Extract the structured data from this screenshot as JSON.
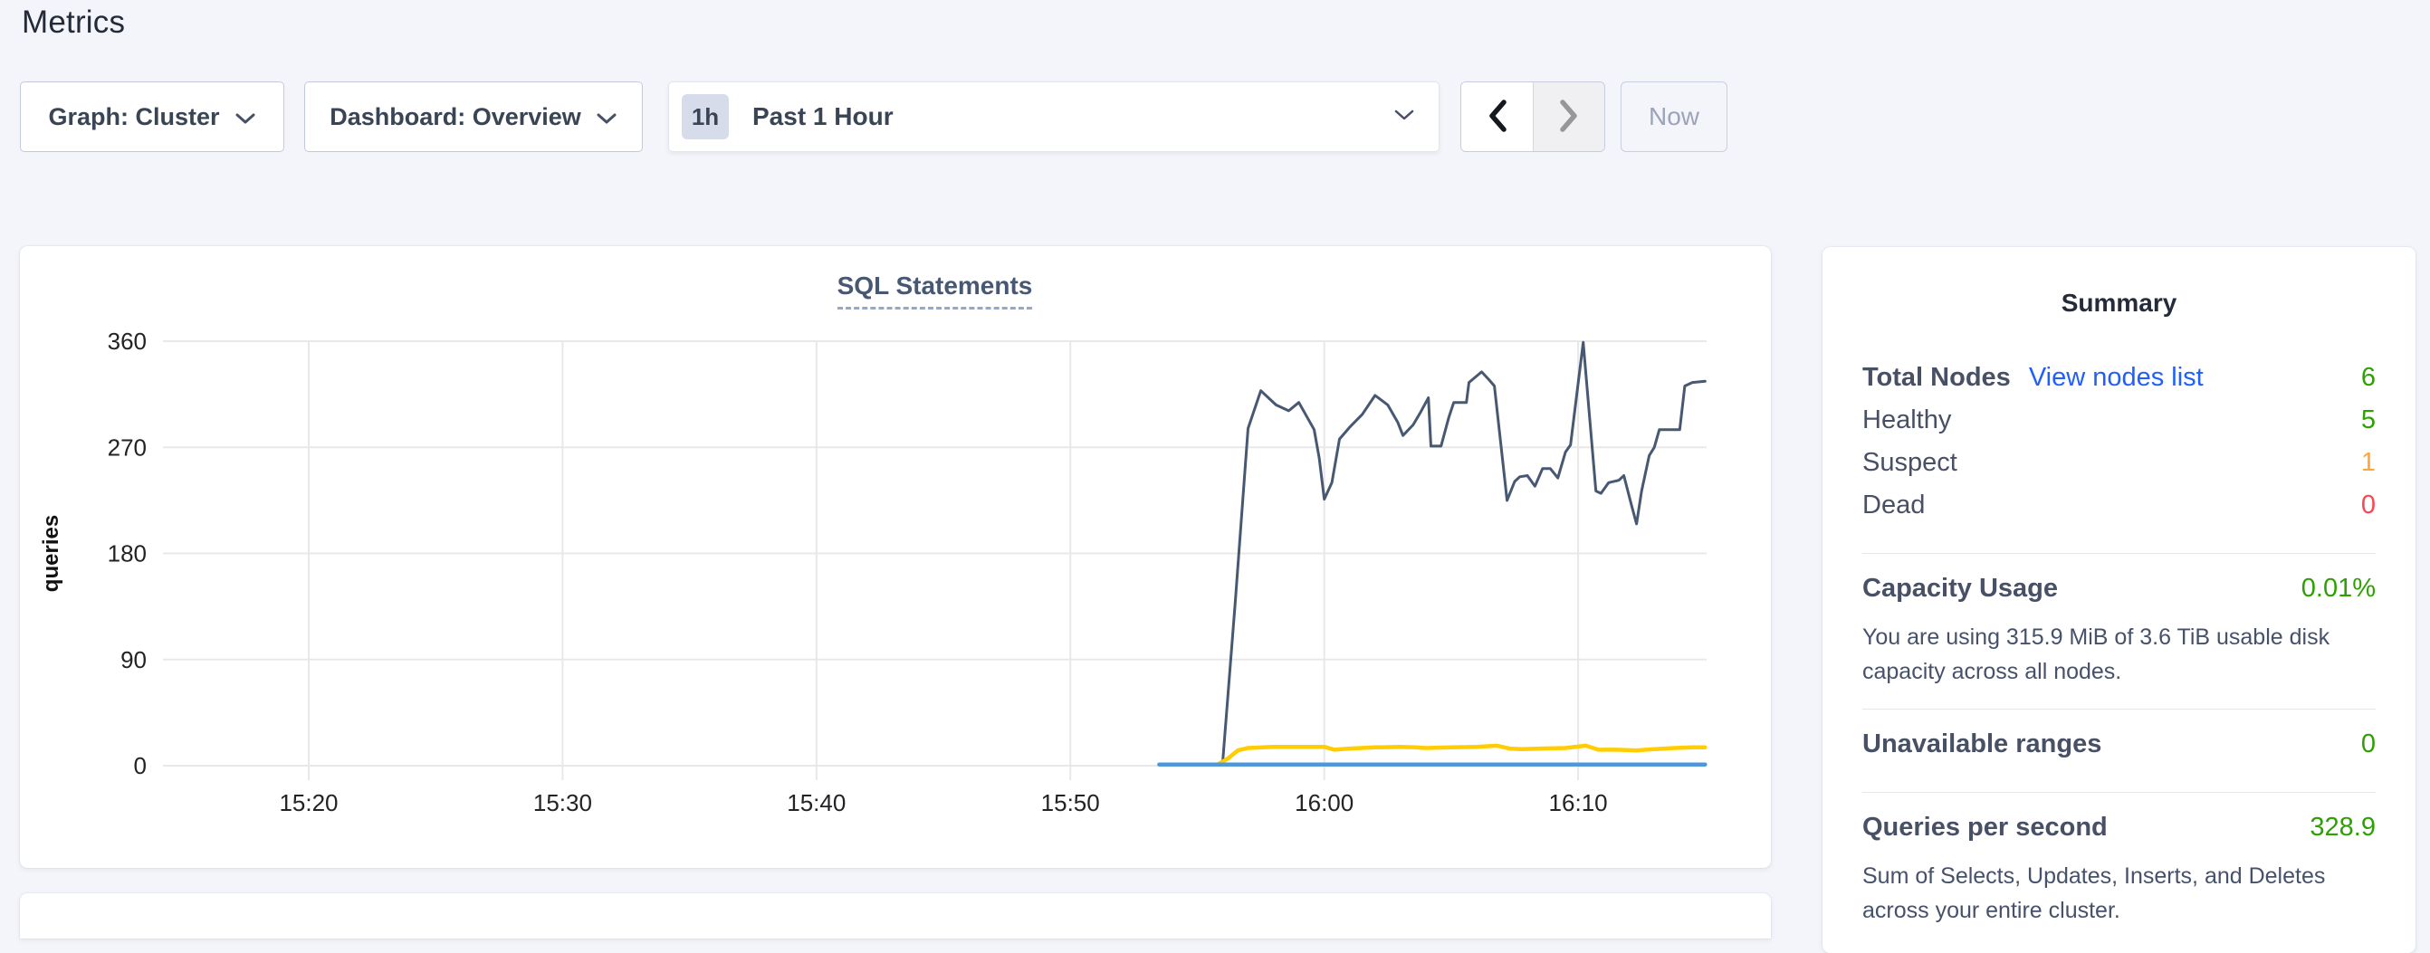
{
  "page": {
    "title": "Metrics"
  },
  "toolbar": {
    "graph_dropdown": "Graph: Cluster",
    "dashboard_dropdown": "Dashboard: Overview",
    "time_badge": "1h",
    "time_label": "Past 1 Hour",
    "now_button": "Now"
  },
  "chart_data": {
    "type": "line",
    "title": "SQL Statements",
    "ylabel": "queries",
    "x_tick_minutes": [
      20,
      30,
      40,
      50,
      60,
      70
    ],
    "x_tick_labels": [
      "15:20",
      "15:30",
      "15:40",
      "15:50",
      "16:00",
      "16:10"
    ],
    "y_ticks": [
      0,
      90,
      180,
      270,
      360
    ],
    "ylim": [
      0,
      360
    ],
    "x_domain_minutes_after_15_00": [
      14.26,
      75.06
    ],
    "grid": true,
    "legend": "none",
    "series": [
      {
        "name": "statements-navy",
        "color": "#475872",
        "width": 3,
        "points": [
          [
            56.0,
            3
          ],
          [
            56.5,
            140
          ],
          [
            57.0,
            286
          ],
          [
            57.5,
            318
          ],
          [
            58.1,
            306
          ],
          [
            58.6,
            301
          ],
          [
            59.0,
            308
          ],
          [
            59.6,
            285
          ],
          [
            59.8,
            261
          ],
          [
            60.0,
            226
          ],
          [
            60.3,
            240
          ],
          [
            60.6,
            277
          ],
          [
            61.0,
            287
          ],
          [
            61.5,
            298
          ],
          [
            62.0,
            314
          ],
          [
            62.5,
            306
          ],
          [
            62.9,
            291
          ],
          [
            63.1,
            280
          ],
          [
            63.5,
            289
          ],
          [
            63.8,
            300
          ],
          [
            64.1,
            312
          ],
          [
            64.2,
            271
          ],
          [
            64.6,
            271
          ],
          [
            64.9,
            295
          ],
          [
            65.1,
            308
          ],
          [
            65.6,
            308
          ],
          [
            65.7,
            325
          ],
          [
            66.2,
            334
          ],
          [
            66.5,
            327
          ],
          [
            66.7,
            322
          ],
          [
            67.2,
            225
          ],
          [
            67.5,
            241
          ],
          [
            67.7,
            245
          ],
          [
            68.0,
            246
          ],
          [
            68.3,
            237
          ],
          [
            68.6,
            252
          ],
          [
            68.9,
            252
          ],
          [
            69.2,
            244
          ],
          [
            69.5,
            266
          ],
          [
            69.7,
            272
          ],
          [
            70.2,
            359
          ],
          [
            70.7,
            233
          ],
          [
            70.9,
            231
          ],
          [
            71.2,
            240
          ],
          [
            71.6,
            242
          ],
          [
            71.8,
            246
          ],
          [
            72.1,
            221
          ],
          [
            72.3,
            205
          ],
          [
            72.5,
            233
          ],
          [
            72.8,
            263
          ],
          [
            73.0,
            270
          ],
          [
            73.2,
            285
          ],
          [
            74.0,
            285
          ],
          [
            74.2,
            322
          ],
          [
            74.5,
            325
          ],
          [
            75.0,
            326
          ]
        ]
      },
      {
        "name": "statements-yellow",
        "color": "#ffcd02",
        "width": 4.5,
        "points": [
          [
            55.8,
            1
          ],
          [
            56.2,
            6
          ],
          [
            56.6,
            13
          ],
          [
            57.0,
            15
          ],
          [
            58.0,
            16
          ],
          [
            59.0,
            16
          ],
          [
            60.0,
            16
          ],
          [
            60.4,
            13.5
          ],
          [
            61.0,
            14.5
          ],
          [
            62.0,
            15.5
          ],
          [
            63.0,
            16
          ],
          [
            63.6,
            15.5
          ],
          [
            64.0,
            15
          ],
          [
            65.0,
            15.5
          ],
          [
            66.0,
            16
          ],
          [
            66.8,
            17
          ],
          [
            67.3,
            14.5
          ],
          [
            67.8,
            14
          ],
          [
            68.5,
            14.5
          ],
          [
            69.5,
            15
          ],
          [
            70.3,
            17
          ],
          [
            70.8,
            13.5
          ],
          [
            71.5,
            13.5
          ],
          [
            72.3,
            13
          ],
          [
            73.0,
            14
          ],
          [
            73.8,
            15
          ],
          [
            74.5,
            15.5
          ],
          [
            75.0,
            15.5
          ]
        ]
      },
      {
        "name": "statements-blue",
        "color": "#4e97d9",
        "width": 4.5,
        "points": [
          [
            53.5,
            1
          ],
          [
            75.0,
            1
          ]
        ]
      }
    ]
  },
  "summary": {
    "heading": "Summary",
    "nodes": {
      "label": "Total Nodes",
      "link": "View nodes list",
      "value": "6",
      "statuses": [
        {
          "label": "Healthy",
          "value": "5"
        },
        {
          "label": "Suspect",
          "value": "1"
        },
        {
          "label": "Dead",
          "value": "0"
        }
      ]
    },
    "capacity": {
      "label": "Capacity Usage",
      "value": "0.01%",
      "description": "You are using 315.9 MiB of 3.6 TiB usable disk capacity across all nodes."
    },
    "unavailable": {
      "label": "Unavailable ranges",
      "value": "0"
    },
    "qps": {
      "label": "Queries per second",
      "value": "328.9",
      "description": "Sum of Selects, Updates, Inserts, and Deletes across your entire cluster."
    }
  },
  "colors": {
    "healthy_green": "#2ea102",
    "suspect_orange": "#ffa53b",
    "dead_red": "#ff4352",
    "link_blue": "#1f5eff",
    "chart_navy": "#475872",
    "chart_yellow": "#ffcd02",
    "chart_blue": "#4e97d9",
    "page_background": "#f4f5fa"
  }
}
